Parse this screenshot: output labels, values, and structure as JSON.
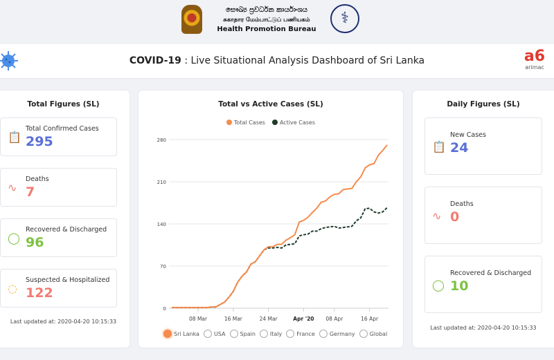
{
  "header": {
    "org_sinhala": "සෞඛ්‍ය ප්‍රවර්ධන කාර්යාංශය",
    "org_tamil": "சுகாதார மேம்பாட்டுப் பணியகம்",
    "org_english": "Health Promotion Bureau",
    "title_bold": "COVID-19",
    "title_rest": " : Live Situational Analysis Dashboard of Sri Lanka",
    "partner_logo_mark": "a6",
    "partner_logo_text": "arimac"
  },
  "total_figures": {
    "title": "Total Figures (SL)",
    "items": [
      {
        "label": "Total Confirmed Cases",
        "value": "295",
        "color": "#5a6fd6",
        "icon": "clipboard-icon"
      },
      {
        "label": "Deaths",
        "value": "7",
        "color": "#f27c72",
        "icon": "pulse-icon"
      },
      {
        "label": "Recovered & Discharged",
        "value": "96",
        "color": "#7cc242",
        "icon": "stethoscope-icon"
      },
      {
        "label": "Suspected & Hospitalized",
        "value": "122",
        "color": "#f27c72",
        "icon": "thermometer-icon"
      }
    ],
    "last_updated": "Last updated at: 2020-04-20 10:15:33"
  },
  "daily_figures": {
    "title": "Daily Figures (SL)",
    "items": [
      {
        "label": "New Cases",
        "value": "24",
        "color": "#5a6fd6",
        "icon": "clipboard-icon"
      },
      {
        "label": "Deaths",
        "value": "0",
        "color": "#f27c72",
        "icon": "pulse-icon"
      },
      {
        "label": "Recovered & Discharged",
        "value": "10",
        "color": "#7cc242",
        "icon": "stethoscope-icon"
      }
    ],
    "last_updated": "Last updated at: 2020-04-20 10:15:33"
  },
  "chart_data": {
    "type": "line",
    "title": "Total vs Active Cases (SL)",
    "x_start": "2020-03-02",
    "x_ticks": [
      {
        "label": "08 Mar",
        "day": 6
      },
      {
        "label": "16 Mar",
        "day": 14
      },
      {
        "label": "24 Mar",
        "day": 22
      },
      {
        "label": "Apr '20",
        "day": 30,
        "bold": true
      },
      {
        "label": "08 Apr",
        "day": 37
      },
      {
        "label": "16 Apr",
        "day": 45
      }
    ],
    "y_ticks": [
      0,
      70,
      140,
      210,
      280
    ],
    "ylim": [
      0,
      280
    ],
    "series": [
      {
        "name": "Total Cases",
        "color": "#f58b4c",
        "dashed": false,
        "values": [
          1,
          1,
          1,
          1,
          1,
          1,
          1,
          1,
          1,
          2,
          2,
          6,
          10,
          18,
          28,
          43,
          53,
          60,
          73,
          77,
          87,
          97,
          102,
          102,
          106,
          106,
          113,
          117,
          122,
          143,
          146,
          151,
          159,
          166,
          176,
          178,
          185,
          189,
          190,
          197,
          198,
          199,
          210,
          218,
          233,
          238,
          240,
          254,
          262,
          271
        ]
      },
      {
        "name": "Active Cases",
        "color": "#1f3b2a",
        "dashed": true,
        "values": [
          1,
          1,
          1,
          1,
          1,
          1,
          1,
          1,
          1,
          2,
          2,
          6,
          10,
          18,
          28,
          43,
          53,
          60,
          73,
          77,
          87,
          97,
          100,
          100,
          101,
          100,
          105,
          106,
          107,
          120,
          122,
          123,
          128,
          128,
          132,
          134,
          135,
          136,
          133,
          134,
          135,
          136,
          145,
          150,
          165,
          166,
          160,
          158,
          160,
          167
        ]
      }
    ]
  },
  "country_options": [
    {
      "label": "Sri Lanka",
      "selected": true
    },
    {
      "label": "USA"
    },
    {
      "label": "Spain"
    },
    {
      "label": "Italy"
    },
    {
      "label": "France"
    },
    {
      "label": "Germany"
    },
    {
      "label": "Global"
    }
  ]
}
